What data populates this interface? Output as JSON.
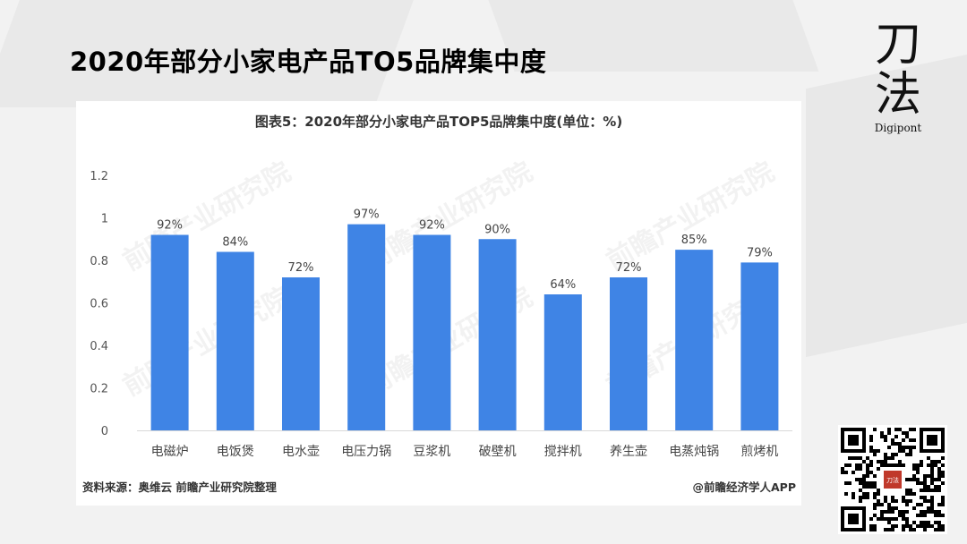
{
  "slide": {
    "title": "2020年部分小家电产品TO5品牌集中度"
  },
  "brand": {
    "char1": "刀",
    "char2": "法",
    "name": "Digipont"
  },
  "chart_card": {
    "source": "资料来源：奥维云 前瞻产业研究院整理",
    "credit": "@前瞻经济学人APP",
    "watermark": "前瞻产业研究院"
  },
  "chart_data": {
    "type": "bar",
    "title": "图表5：2020年部分小家电产品TOP5品牌集中度(单位：%)",
    "categories": [
      "电磁炉",
      "电饭煲",
      "电水壶",
      "电压力锅",
      "豆浆机",
      "破壁机",
      "搅拌机",
      "养生壶",
      "电蒸炖锅",
      "煎烤机"
    ],
    "values": [
      0.92,
      0.84,
      0.72,
      0.97,
      0.92,
      0.9,
      0.64,
      0.72,
      0.85,
      0.79
    ],
    "data_labels": [
      "92%",
      "84%",
      "72%",
      "97%",
      "92%",
      "90%",
      "64%",
      "72%",
      "85%",
      "79%"
    ],
    "yticks": [
      "0",
      "0.2",
      "0.4",
      "0.6",
      "0.8",
      "1",
      "1.2"
    ],
    "ylim": [
      0,
      1.2
    ],
    "bar_color": "#3f84e5",
    "grid": false,
    "legend": "none"
  },
  "qr": {
    "center_label": "刀法"
  }
}
